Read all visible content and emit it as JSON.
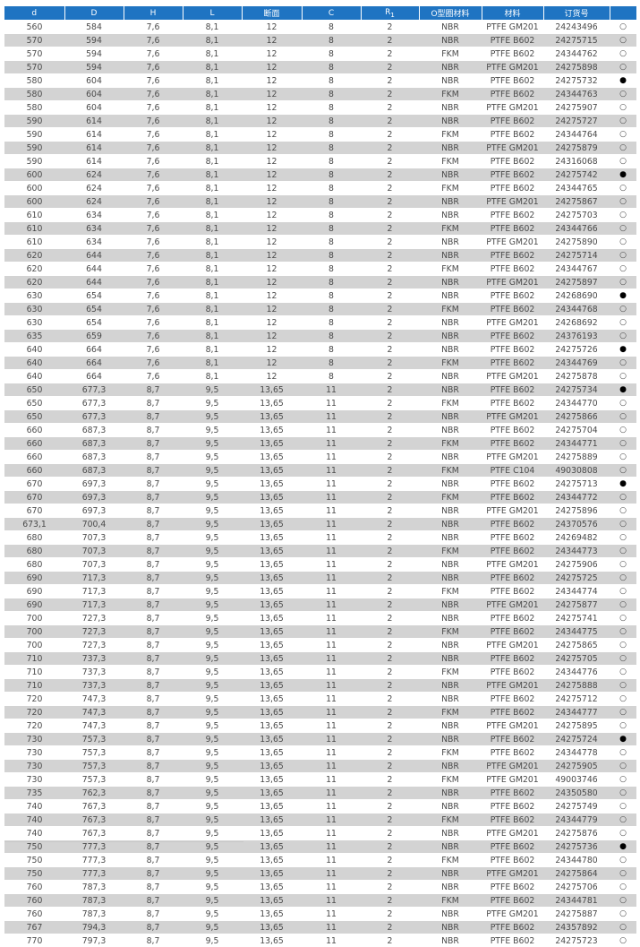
{
  "headers": [
    "d",
    "D",
    "H",
    "L",
    "断面",
    "C",
    "R1",
    "O型圈材料",
    "材料",
    "订货号",
    ""
  ],
  "rows": [
    [
      "560",
      "584",
      "7,6",
      "8,1",
      "12",
      "8",
      "2",
      "NBR",
      "PTFE GM201",
      "24243496",
      "open"
    ],
    [
      "570",
      "594",
      "7,6",
      "8,1",
      "12",
      "8",
      "2",
      "NBR",
      "PTFE B602",
      "24275715",
      "open"
    ],
    [
      "570",
      "594",
      "7,6",
      "8,1",
      "12",
      "8",
      "2",
      "FKM",
      "PTFE B602",
      "24344762",
      "open"
    ],
    [
      "570",
      "594",
      "7,6",
      "8,1",
      "12",
      "8",
      "2",
      "NBR",
      "PTFE GM201",
      "24275898",
      "open"
    ],
    [
      "580",
      "604",
      "7,6",
      "8,1",
      "12",
      "8",
      "2",
      "NBR",
      "PTFE B602",
      "24275732",
      "filled"
    ],
    [
      "580",
      "604",
      "7,6",
      "8,1",
      "12",
      "8",
      "2",
      "FKM",
      "PTFE B602",
      "24344763",
      "open"
    ],
    [
      "580",
      "604",
      "7,6",
      "8,1",
      "12",
      "8",
      "2",
      "NBR",
      "PTFE GM201",
      "24275907",
      "open"
    ],
    [
      "590",
      "614",
      "7,6",
      "8,1",
      "12",
      "8",
      "2",
      "NBR",
      "PTFE B602",
      "24275727",
      "open"
    ],
    [
      "590",
      "614",
      "7,6",
      "8,1",
      "12",
      "8",
      "2",
      "FKM",
      "PTFE B602",
      "24344764",
      "open"
    ],
    [
      "590",
      "614",
      "7,6",
      "8,1",
      "12",
      "8",
      "2",
      "NBR",
      "PTFE GM201",
      "24275879",
      "open"
    ],
    [
      "590",
      "614",
      "7,6",
      "8,1",
      "12",
      "8",
      "2",
      "FKM",
      "PTFE B602",
      "24316068",
      "open"
    ],
    [
      "600",
      "624",
      "7,6",
      "8,1",
      "12",
      "8",
      "2",
      "NBR",
      "PTFE B602",
      "24275742",
      "filled"
    ],
    [
      "600",
      "624",
      "7,6",
      "8,1",
      "12",
      "8",
      "2",
      "FKM",
      "PTFE B602",
      "24344765",
      "open"
    ],
    [
      "600",
      "624",
      "7,6",
      "8,1",
      "12",
      "8",
      "2",
      "NBR",
      "PTFE GM201",
      "24275867",
      "open"
    ],
    [
      "610",
      "634",
      "7,6",
      "8,1",
      "12",
      "8",
      "2",
      "NBR",
      "PTFE B602",
      "24275703",
      "open"
    ],
    [
      "610",
      "634",
      "7,6",
      "8,1",
      "12",
      "8",
      "2",
      "FKM",
      "PTFE B602",
      "24344766",
      "open"
    ],
    [
      "610",
      "634",
      "7,6",
      "8,1",
      "12",
      "8",
      "2",
      "NBR",
      "PTFE GM201",
      "24275890",
      "open"
    ],
    [
      "620",
      "644",
      "7,6",
      "8,1",
      "12",
      "8",
      "2",
      "NBR",
      "PTFE B602",
      "24275714",
      "open"
    ],
    [
      "620",
      "644",
      "7,6",
      "8,1",
      "12",
      "8",
      "2",
      "FKM",
      "PTFE B602",
      "24344767",
      "open"
    ],
    [
      "620",
      "644",
      "7,6",
      "8,1",
      "12",
      "8",
      "2",
      "NBR",
      "PTFE GM201",
      "24275897",
      "open"
    ],
    [
      "630",
      "654",
      "7,6",
      "8,1",
      "12",
      "8",
      "2",
      "NBR",
      "PTFE B602",
      "24268690",
      "filled"
    ],
    [
      "630",
      "654",
      "7,6",
      "8,1",
      "12",
      "8",
      "2",
      "FKM",
      "PTFE B602",
      "24344768",
      "open"
    ],
    [
      "630",
      "654",
      "7,6",
      "8,1",
      "12",
      "8",
      "2",
      "NBR",
      "PTFE GM201",
      "24268692",
      "open"
    ],
    [
      "635",
      "659",
      "7,6",
      "8,1",
      "12",
      "8",
      "2",
      "NBR",
      "PTFE B602",
      "24376193",
      "open"
    ],
    [
      "640",
      "664",
      "7,6",
      "8,1",
      "12",
      "8",
      "2",
      "NBR",
      "PTFE B602",
      "24275726",
      "filled"
    ],
    [
      "640",
      "664",
      "7,6",
      "8,1",
      "12",
      "8",
      "2",
      "FKM",
      "PTFE B602",
      "24344769",
      "open"
    ],
    [
      "640",
      "664",
      "7,6",
      "8,1",
      "12",
      "8",
      "2",
      "NBR",
      "PTFE GM201",
      "24275878",
      "open"
    ],
    [
      "650",
      "677,3",
      "8,7",
      "9,5",
      "13,65",
      "11",
      "2",
      "NBR",
      "PTFE B602",
      "24275734",
      "filled"
    ],
    [
      "650",
      "677,3",
      "8,7",
      "9,5",
      "13,65",
      "11",
      "2",
      "FKM",
      "PTFE B602",
      "24344770",
      "open"
    ],
    [
      "650",
      "677,3",
      "8,7",
      "9,5",
      "13,65",
      "11",
      "2",
      "NBR",
      "PTFE GM201",
      "24275866",
      "open"
    ],
    [
      "660",
      "687,3",
      "8,7",
      "9,5",
      "13,65",
      "11",
      "2",
      "NBR",
      "PTFE B602",
      "24275704",
      "open"
    ],
    [
      "660",
      "687,3",
      "8,7",
      "9,5",
      "13,65",
      "11",
      "2",
      "FKM",
      "PTFE B602",
      "24344771",
      "open"
    ],
    [
      "660",
      "687,3",
      "8,7",
      "9,5",
      "13,65",
      "11",
      "2",
      "NBR",
      "PTFE GM201",
      "24275889",
      "open"
    ],
    [
      "660",
      "687,3",
      "8,7",
      "9,5",
      "13,65",
      "11",
      "2",
      "FKM",
      "PTFE C104",
      "49030808",
      "open"
    ],
    [
      "670",
      "697,3",
      "8,7",
      "9,5",
      "13,65",
      "11",
      "2",
      "NBR",
      "PTFE B602",
      "24275713",
      "filled"
    ],
    [
      "670",
      "697,3",
      "8,7",
      "9,5",
      "13,65",
      "11",
      "2",
      "FKM",
      "PTFE B602",
      "24344772",
      "open"
    ],
    [
      "670",
      "697,3",
      "8,7",
      "9,5",
      "13,65",
      "11",
      "2",
      "NBR",
      "PTFE GM201",
      "24275896",
      "open"
    ],
    [
      "673,1",
      "700,4",
      "8,7",
      "9,5",
      "13,65",
      "11",
      "2",
      "NBR",
      "PTFE B602",
      "24370576",
      "open"
    ],
    [
      "680",
      "707,3",
      "8,7",
      "9,5",
      "13,65",
      "11",
      "2",
      "NBR",
      "PTFE B602",
      "24269482",
      "open"
    ],
    [
      "680",
      "707,3",
      "8,7",
      "9,5",
      "13,65",
      "11",
      "2",
      "FKM",
      "PTFE B602",
      "24344773",
      "open"
    ],
    [
      "680",
      "707,3",
      "8,7",
      "9,5",
      "13,65",
      "11",
      "2",
      "NBR",
      "PTFE GM201",
      "24275906",
      "open"
    ],
    [
      "690",
      "717,3",
      "8,7",
      "9,5",
      "13,65",
      "11",
      "2",
      "NBR",
      "PTFE B602",
      "24275725",
      "open"
    ],
    [
      "690",
      "717,3",
      "8,7",
      "9,5",
      "13,65",
      "11",
      "2",
      "FKM",
      "PTFE B602",
      "24344774",
      "open"
    ],
    [
      "690",
      "717,3",
      "8,7",
      "9,5",
      "13,65",
      "11",
      "2",
      "NBR",
      "PTFE GM201",
      "24275877",
      "open"
    ],
    [
      "700",
      "727,3",
      "8,7",
      "9,5",
      "13,65",
      "11",
      "2",
      "NBR",
      "PTFE B602",
      "24275741",
      "open"
    ],
    [
      "700",
      "727,3",
      "8,7",
      "9,5",
      "13,65",
      "11",
      "2",
      "FKM",
      "PTFE B602",
      "24344775",
      "open"
    ],
    [
      "700",
      "727,3",
      "8,7",
      "9,5",
      "13,65",
      "11",
      "2",
      "NBR",
      "PTFE GM201",
      "24275865",
      "open"
    ],
    [
      "710",
      "737,3",
      "8,7",
      "9,5",
      "13,65",
      "11",
      "2",
      "NBR",
      "PTFE B602",
      "24275705",
      "open"
    ],
    [
      "710",
      "737,3",
      "8,7",
      "9,5",
      "13,65",
      "11",
      "2",
      "FKM",
      "PTFE B602",
      "24344776",
      "open"
    ],
    [
      "710",
      "737,3",
      "8,7",
      "9,5",
      "13,65",
      "11",
      "2",
      "NBR",
      "PTFE GM201",
      "24275888",
      "open"
    ],
    [
      "720",
      "747,3",
      "8,7",
      "9,5",
      "13,65",
      "11",
      "2",
      "NBR",
      "PTFE B602",
      "24275712",
      "open"
    ],
    [
      "720",
      "747,3",
      "8,7",
      "9,5",
      "13,65",
      "11",
      "2",
      "FKM",
      "PTFE B602",
      "24344777",
      "open"
    ],
    [
      "720",
      "747,3",
      "8,7",
      "9,5",
      "13,65",
      "11",
      "2",
      "NBR",
      "PTFE GM201",
      "24275895",
      "open"
    ],
    [
      "730",
      "757,3",
      "8,7",
      "9,5",
      "13,65",
      "11",
      "2",
      "NBR",
      "PTFE B602",
      "24275724",
      "filled"
    ],
    [
      "730",
      "757,3",
      "8,7",
      "9,5",
      "13,65",
      "11",
      "2",
      "FKM",
      "PTFE B602",
      "24344778",
      "open"
    ],
    [
      "730",
      "757,3",
      "8,7",
      "9,5",
      "13,65",
      "11",
      "2",
      "NBR",
      "PTFE GM201",
      "24275905",
      "open"
    ],
    [
      "730",
      "757,3",
      "8,7",
      "9,5",
      "13,65",
      "11",
      "2",
      "FKM",
      "PTFE GM201",
      "49003746",
      "open"
    ],
    [
      "735",
      "762,3",
      "8,7",
      "9,5",
      "13,65",
      "11",
      "2",
      "NBR",
      "PTFE B602",
      "24350580",
      "open"
    ],
    [
      "740",
      "767,3",
      "8,7",
      "9,5",
      "13,65",
      "11",
      "2",
      "NBR",
      "PTFE B602",
      "24275749",
      "open"
    ],
    [
      "740",
      "767,3",
      "8,7",
      "9,5",
      "13,65",
      "11",
      "2",
      "FKM",
      "PTFE B602",
      "24344779",
      "open"
    ],
    [
      "740",
      "767,3",
      "8,7",
      "9,5",
      "13,65",
      "11",
      "2",
      "NBR",
      "PTFE GM201",
      "24275876",
      "open"
    ],
    [
      "750",
      "777,3",
      "8,7",
      "9,5",
      "13,65",
      "11",
      "2",
      "NBR",
      "PTFE B602",
      "24275736",
      "filled"
    ],
    [
      "750",
      "777,3",
      "8,7",
      "9,5",
      "13,65",
      "11",
      "2",
      "FKM",
      "PTFE B602",
      "24344780",
      "open"
    ],
    [
      "750",
      "777,3",
      "8,7",
      "9,5",
      "13,65",
      "11",
      "2",
      "NBR",
      "PTFE GM201",
      "24275864",
      "open"
    ],
    [
      "760",
      "787,3",
      "8,7",
      "9,5",
      "13,65",
      "11",
      "2",
      "NBR",
      "PTFE B602",
      "24275706",
      "open"
    ],
    [
      "760",
      "787,3",
      "8,7",
      "9,5",
      "13,65",
      "11",
      "2",
      "FKM",
      "PTFE B602",
      "24344781",
      "open"
    ],
    [
      "760",
      "787,3",
      "8,7",
      "9,5",
      "13,65",
      "11",
      "2",
      "NBR",
      "PTFE GM201",
      "24275887",
      "open"
    ],
    [
      "767",
      "794,3",
      "8,7",
      "9,5",
      "13,65",
      "11",
      "2",
      "NBR",
      "PTFE B602",
      "24357892",
      "open"
    ],
    [
      "770",
      "797,3",
      "8,7",
      "9,5",
      "13,65",
      "11",
      "2",
      "NBR",
      "PTFE B602",
      "24275723",
      "open"
    ]
  ],
  "colors": {
    "header_bg": "#1f74c2",
    "alt_row_bg": "#d3d3d3"
  },
  "icons": {
    "open": "availability-open-circle-icon",
    "filled": "availability-filled-circle-icon"
  }
}
